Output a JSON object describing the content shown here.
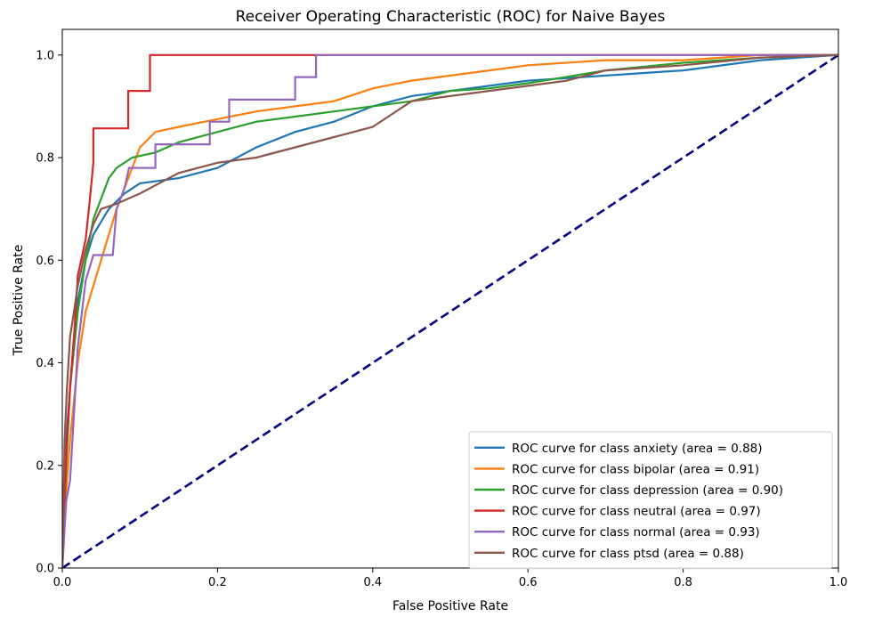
{
  "chart_data": {
    "type": "line",
    "title": "Receiver Operating Characteristic (ROC) for Naive Bayes",
    "xlabel": "False Positive Rate",
    "ylabel": "True Positive Rate",
    "xlim": [
      0.0,
      1.0
    ],
    "ylim": [
      0.0,
      1.05
    ],
    "x_ticks": [
      "0.0",
      "0.2",
      "0.4",
      "0.6",
      "0.8",
      "1.0"
    ],
    "y_ticks": [
      "0.0",
      "0.2",
      "0.4",
      "0.6",
      "0.8",
      "1.0"
    ],
    "grid": false,
    "legend_position": "lower-right",
    "diagonal": {
      "points": [
        [
          0,
          0
        ],
        [
          1,
          1
        ]
      ],
      "color": "#000080",
      "style": "dashed"
    },
    "series": [
      {
        "name": "ROC curve for class anxiety (area = 0.88)",
        "color": "#1f77b4",
        "points": [
          [
            0,
            0
          ],
          [
            0.002,
            0.12
          ],
          [
            0.005,
            0.25
          ],
          [
            0.01,
            0.35
          ],
          [
            0.015,
            0.45
          ],
          [
            0.02,
            0.52
          ],
          [
            0.03,
            0.6
          ],
          [
            0.04,
            0.65
          ],
          [
            0.06,
            0.7
          ],
          [
            0.08,
            0.73
          ],
          [
            0.1,
            0.75
          ],
          [
            0.15,
            0.76
          ],
          [
            0.2,
            0.78
          ],
          [
            0.25,
            0.82
          ],
          [
            0.3,
            0.85
          ],
          [
            0.35,
            0.87
          ],
          [
            0.4,
            0.9
          ],
          [
            0.45,
            0.92
          ],
          [
            0.5,
            0.93
          ],
          [
            0.55,
            0.94
          ],
          [
            0.6,
            0.95
          ],
          [
            0.7,
            0.96
          ],
          [
            0.8,
            0.97
          ],
          [
            0.9,
            0.99
          ],
          [
            1,
            1
          ]
        ]
      },
      {
        "name": "ROC curve for class bipolar (area = 0.91)",
        "color": "#ff7f0e",
        "points": [
          [
            0,
            0
          ],
          [
            0.005,
            0.15
          ],
          [
            0.01,
            0.25
          ],
          [
            0.02,
            0.4
          ],
          [
            0.03,
            0.5
          ],
          [
            0.04,
            0.55
          ],
          [
            0.05,
            0.6
          ],
          [
            0.06,
            0.65
          ],
          [
            0.07,
            0.7
          ],
          [
            0.09,
            0.78
          ],
          [
            0.1,
            0.82
          ],
          [
            0.12,
            0.85
          ],
          [
            0.15,
            0.86
          ],
          [
            0.2,
            0.875
          ],
          [
            0.25,
            0.89
          ],
          [
            0.3,
            0.9
          ],
          [
            0.35,
            0.91
          ],
          [
            0.37,
            0.92
          ],
          [
            0.4,
            0.935
          ],
          [
            0.45,
            0.95
          ],
          [
            0.5,
            0.96
          ],
          [
            0.55,
            0.97
          ],
          [
            0.6,
            0.98
          ],
          [
            0.7,
            0.99
          ],
          [
            0.8,
            0.99
          ],
          [
            0.9,
            1
          ],
          [
            1,
            1
          ]
        ]
      },
      {
        "name": "ROC curve for class depression (area = 0.90)",
        "color": "#2ca02c",
        "points": [
          [
            0,
            0
          ],
          [
            0.005,
            0.2
          ],
          [
            0.01,
            0.35
          ],
          [
            0.02,
            0.5
          ],
          [
            0.03,
            0.6
          ],
          [
            0.04,
            0.68
          ],
          [
            0.05,
            0.72
          ],
          [
            0.06,
            0.76
          ],
          [
            0.07,
            0.78
          ],
          [
            0.09,
            0.8
          ],
          [
            0.12,
            0.81
          ],
          [
            0.15,
            0.83
          ],
          [
            0.2,
            0.85
          ],
          [
            0.25,
            0.87
          ],
          [
            0.3,
            0.88
          ],
          [
            0.35,
            0.89
          ],
          [
            0.4,
            0.9
          ],
          [
            0.45,
            0.91
          ],
          [
            0.5,
            0.93
          ],
          [
            0.55,
            0.935
          ],
          [
            0.6,
            0.945
          ],
          [
            0.7,
            0.97
          ],
          [
            0.8,
            0.985
          ],
          [
            0.9,
            0.995
          ],
          [
            1,
            1
          ]
        ]
      },
      {
        "name": "ROC curve for class neutral (area = 0.97)",
        "color": "#d62728",
        "points": [
          [
            0,
            0
          ],
          [
            0.005,
            0.22
          ],
          [
            0.01,
            0.35
          ],
          [
            0.015,
            0.45
          ],
          [
            0.02,
            0.57
          ],
          [
            0.03,
            0.64
          ],
          [
            0.035,
            0.71
          ],
          [
            0.04,
            0.79
          ],
          [
            0.04,
            0.857
          ],
          [
            0.085,
            0.857
          ],
          [
            0.085,
            0.93
          ],
          [
            0.113,
            0.93
          ],
          [
            0.113,
            1
          ],
          [
            1,
            1
          ]
        ]
      },
      {
        "name": "ROC curve for class normal (area = 0.93)",
        "color": "#9467bd",
        "points": [
          [
            0,
            0
          ],
          [
            0.005,
            0.13
          ],
          [
            0.01,
            0.17
          ],
          [
            0.015,
            0.3
          ],
          [
            0.02,
            0.43
          ],
          [
            0.03,
            0.56
          ],
          [
            0.04,
            0.61
          ],
          [
            0.065,
            0.61
          ],
          [
            0.07,
            0.7
          ],
          [
            0.08,
            0.74
          ],
          [
            0.086,
            0.78
          ],
          [
            0.12,
            0.78
          ],
          [
            0.12,
            0.826
          ],
          [
            0.19,
            0.826
          ],
          [
            0.19,
            0.87
          ],
          [
            0.215,
            0.87
          ],
          [
            0.215,
            0.913
          ],
          [
            0.3,
            0.913
          ],
          [
            0.3,
            0.957
          ],
          [
            0.327,
            0.957
          ],
          [
            0.327,
            1
          ],
          [
            1,
            1
          ]
        ]
      },
      {
        "name": "ROC curve for class ptsd (area = 0.88)",
        "color": "#8c564b",
        "points": [
          [
            0,
            0
          ],
          [
            0.003,
            0.25
          ],
          [
            0.006,
            0.35
          ],
          [
            0.01,
            0.45
          ],
          [
            0.015,
            0.5
          ],
          [
            0.02,
            0.55
          ],
          [
            0.03,
            0.62
          ],
          [
            0.04,
            0.67
          ],
          [
            0.05,
            0.7
          ],
          [
            0.07,
            0.71
          ],
          [
            0.1,
            0.73
          ],
          [
            0.15,
            0.77
          ],
          [
            0.2,
            0.79
          ],
          [
            0.25,
            0.8
          ],
          [
            0.3,
            0.82
          ],
          [
            0.35,
            0.84
          ],
          [
            0.4,
            0.86
          ],
          [
            0.42,
            0.88
          ],
          [
            0.45,
            0.91
          ],
          [
            0.5,
            0.92
          ],
          [
            0.55,
            0.93
          ],
          [
            0.6,
            0.94
          ],
          [
            0.65,
            0.95
          ],
          [
            0.7,
            0.97
          ],
          [
            0.8,
            0.98
          ],
          [
            0.9,
            0.995
          ],
          [
            1,
            1
          ]
        ]
      }
    ]
  }
}
